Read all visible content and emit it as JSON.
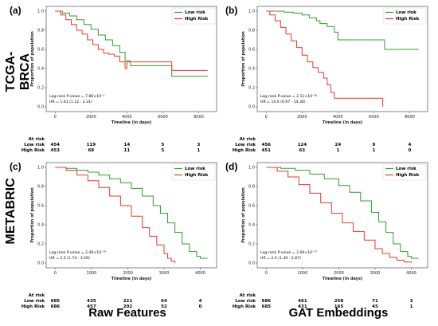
{
  "row_labels": [
    "TCGA-BRCA",
    "METABRIC"
  ],
  "col_labels": [
    "Raw Features",
    "GAT Embeddings"
  ],
  "colors": {
    "low": "#2ca02c",
    "high": "#e8392b"
  },
  "chart_data": [
    {
      "type": "line",
      "tag": "(a)",
      "xlabel": "Timeline (in days)",
      "ylabel": "Proportion of population",
      "xlim": [
        -500,
        9000
      ],
      "ylim": [
        -0.05,
        1.05
      ],
      "xticks": [
        0,
        2000,
        4000,
        6000,
        8000
      ],
      "xtick_labels": [
        "0",
        "2000",
        "4000",
        "6000",
        "8000"
      ],
      "yticks": [
        0.0,
        0.2,
        0.4,
        0.6,
        0.8,
        1.0
      ],
      "ytick_labels": [
        "0.0",
        "0.2",
        "0.4",
        "0.6",
        "0.8",
        "1.0"
      ],
      "legend_position": "top-right",
      "stat_lines": [
        "Log-rank  P-value = 7.86×10⁻³",
        "HR = 1.61 (1.12 - 2.31)"
      ],
      "series": [
        {
          "name": "Low risk",
          "color_key": "low",
          "x": [
            0,
            400,
            800,
            1200,
            1600,
            2000,
            2400,
            2800,
            3200,
            3600,
            3900,
            4200,
            4800,
            5500,
            6400,
            6500,
            8500
          ],
          "y": [
            1.0,
            0.98,
            0.95,
            0.91,
            0.86,
            0.81,
            0.75,
            0.7,
            0.64,
            0.57,
            0.48,
            0.43,
            0.43,
            0.43,
            0.43,
            0.32,
            0.32
          ]
        },
        {
          "name": "High Risk",
          "color_key": "high",
          "x": [
            0,
            300,
            600,
            900,
            1200,
            1500,
            1800,
            2100,
            2400,
            2700,
            3000,
            3300,
            3600,
            3900,
            4000,
            5000,
            6000,
            6500,
            8500
          ],
          "y": [
            1.0,
            0.96,
            0.91,
            0.86,
            0.8,
            0.76,
            0.7,
            0.65,
            0.6,
            0.56,
            0.55,
            0.53,
            0.47,
            0.4,
            0.47,
            0.47,
            0.47,
            0.38,
            0.38
          ]
        }
      ],
      "risk_table": {
        "header": "At risk",
        "rows": [
          {
            "label": "Low risk",
            "values": [
              "454",
              "119",
              "14",
              "5",
              "3"
            ]
          },
          {
            "label": "High Risk",
            "values": [
              "453",
              "68",
              "11",
              "5",
              "1"
            ]
          }
        ]
      }
    },
    {
      "type": "line",
      "tag": "(b)",
      "xlabel": "Timeline (in days)",
      "ylabel": "Proportion of population",
      "xlim": [
        -500,
        9000
      ],
      "ylim": [
        -0.05,
        1.05
      ],
      "xticks": [
        0,
        2000,
        4000,
        6000,
        8000
      ],
      "xtick_labels": [
        "0",
        "2000",
        "4000",
        "6000",
        "8000"
      ],
      "yticks": [
        0.0,
        0.2,
        0.4,
        0.6,
        0.8,
        1.0
      ],
      "ytick_labels": [
        "0.0",
        "0.2",
        "0.4",
        "0.6",
        "0.8",
        "1.0"
      ],
      "legend_position": "top-right",
      "stat_lines": [
        "Log-rank  P-value = 2.11×10⁻²⁶",
        "HR = 10.0 (6.97 - 14.30)"
      ],
      "series": [
        {
          "name": "Low risk",
          "color_key": "low",
          "x": [
            0,
            1000,
            1500,
            2000,
            2400,
            2800,
            3000,
            3400,
            3800,
            4000,
            4500,
            5000,
            5500,
            6000,
            6500,
            6600,
            8500
          ],
          "y": [
            1.0,
            0.99,
            0.98,
            0.96,
            0.93,
            0.9,
            0.87,
            0.84,
            0.78,
            0.7,
            0.7,
            0.7,
            0.7,
            0.7,
            0.7,
            0.6,
            0.6
          ]
        },
        {
          "name": "High Risk",
          "color_key": "high",
          "x": [
            0,
            200,
            500,
            800,
            1100,
            1400,
            1700,
            2000,
            2300,
            2600,
            2900,
            3200,
            3400,
            3600,
            3800,
            4000,
            6400,
            6500
          ],
          "y": [
            1.0,
            0.96,
            0.9,
            0.83,
            0.76,
            0.69,
            0.62,
            0.54,
            0.47,
            0.41,
            0.36,
            0.3,
            0.23,
            0.15,
            0.09,
            0.09,
            0.09,
            0.0
          ]
        }
      ],
      "risk_table": {
        "header": "At risk",
        "rows": [
          {
            "label": "Low risk",
            "values": [
              "456",
              "124",
              "24",
              "9",
              "4"
            ]
          },
          {
            "label": "High Risk",
            "values": [
              "451",
              "63",
              "1",
              "1",
              "0"
            ]
          }
        ]
      }
    },
    {
      "type": "line",
      "tag": "(c)",
      "xlabel": "Timeline (in days)",
      "ylabel": "Proportion of population",
      "xlim": [
        -250,
        4450
      ],
      "ylim": [
        -0.05,
        1.05
      ],
      "xticks": [
        0,
        1000,
        2000,
        3000,
        4000
      ],
      "xtick_labels": [
        "0",
        "1000",
        "2000",
        "3000",
        "4000"
      ],
      "yticks": [
        0.0,
        0.2,
        0.4,
        0.6,
        0.8,
        1.0
      ],
      "ytick_labels": [
        "0.0",
        "0.2",
        "0.4",
        "0.6",
        "0.8",
        "1.0"
      ],
      "legend_position": "top-right",
      "stat_lines": [
        "Log-rank  P-value = 2.49×10⁻¹⁹",
        "HR = 2.5 (1.74 - 3.59)"
      ],
      "series": [
        {
          "name": "Low risk",
          "color_key": "low",
          "x": [
            0,
            300,
            600,
            900,
            1200,
            1500,
            1800,
            2100,
            2400,
            2700,
            2900,
            3100,
            3300,
            3500,
            3700,
            3900,
            4000,
            4200
          ],
          "y": [
            1.0,
            0.99,
            0.97,
            0.95,
            0.92,
            0.88,
            0.84,
            0.78,
            0.7,
            0.6,
            0.52,
            0.42,
            0.32,
            0.2,
            0.12,
            0.07,
            0.05,
            0.05
          ]
        },
        {
          "name": "High Risk",
          "color_key": "high",
          "x": [
            0,
            300,
            600,
            900,
            1200,
            1500,
            1800,
            2100,
            2400,
            2600,
            2800,
            3000,
            3100,
            3200,
            3300
          ],
          "y": [
            1.0,
            0.97,
            0.92,
            0.86,
            0.79,
            0.7,
            0.6,
            0.49,
            0.37,
            0.28,
            0.19,
            0.1,
            0.05,
            0.02,
            0.0
          ]
        }
      ],
      "risk_table": {
        "header": "At risk",
        "rows": [
          {
            "label": "Low risk",
            "values": [
              "685",
              "435",
              "221",
              "64",
              "4"
            ]
          },
          {
            "label": "High Risk",
            "values": [
              "686",
              "457",
              "202",
              "52",
              "0"
            ]
          }
        ]
      }
    },
    {
      "type": "line",
      "tag": "(d)",
      "xlabel": "Timeline (in days)",
      "ylabel": "Proportion of population",
      "xlim": [
        -250,
        4450
      ],
      "ylim": [
        -0.05,
        1.05
      ],
      "xticks": [
        0,
        1000,
        2000,
        3000,
        4000
      ],
      "xtick_labels": [
        "0",
        "1000",
        "2000",
        "3000",
        "4000"
      ],
      "yticks": [
        0.0,
        0.2,
        0.4,
        0.6,
        0.8,
        1.0
      ],
      "ytick_labels": [
        "0.0",
        "0.2",
        "0.4",
        "0.6",
        "0.8",
        "1.0"
      ],
      "legend_position": "top-right",
      "stat_lines": [
        "Log-rank  P-value = 2.04×10⁻³⁷",
        "HR = 2.0 (1.39 - 2.87)"
      ],
      "series": [
        {
          "name": "Low risk",
          "color_key": "low",
          "x": [
            0,
            400,
            800,
            1200,
            1600,
            2000,
            2300,
            2600,
            2900,
            3100,
            3300,
            3500,
            3700,
            3900,
            4000,
            4200
          ],
          "y": [
            1.0,
            0.99,
            0.97,
            0.93,
            0.88,
            0.81,
            0.74,
            0.65,
            0.53,
            0.43,
            0.32,
            0.2,
            0.12,
            0.07,
            0.05,
            0.05
          ]
        },
        {
          "name": "High Risk",
          "color_key": "high",
          "x": [
            0,
            300,
            600,
            900,
            1200,
            1500,
            1800,
            2100,
            2400,
            2700,
            3000,
            3200,
            3400,
            3600,
            3800,
            4000
          ],
          "y": [
            1.0,
            0.96,
            0.9,
            0.82,
            0.73,
            0.63,
            0.52,
            0.42,
            0.33,
            0.24,
            0.15,
            0.1,
            0.06,
            0.03,
            0.01,
            0.0
          ]
        }
      ],
      "risk_table": {
        "header": "At risk",
        "rows": [
          {
            "label": "Low risk",
            "values": [
              "686",
              "461",
              "258",
              "71",
              "3"
            ]
          },
          {
            "label": "High Risk",
            "values": [
              "685",
              "431",
              "165",
              "45",
              "1"
            ]
          }
        ]
      }
    }
  ]
}
